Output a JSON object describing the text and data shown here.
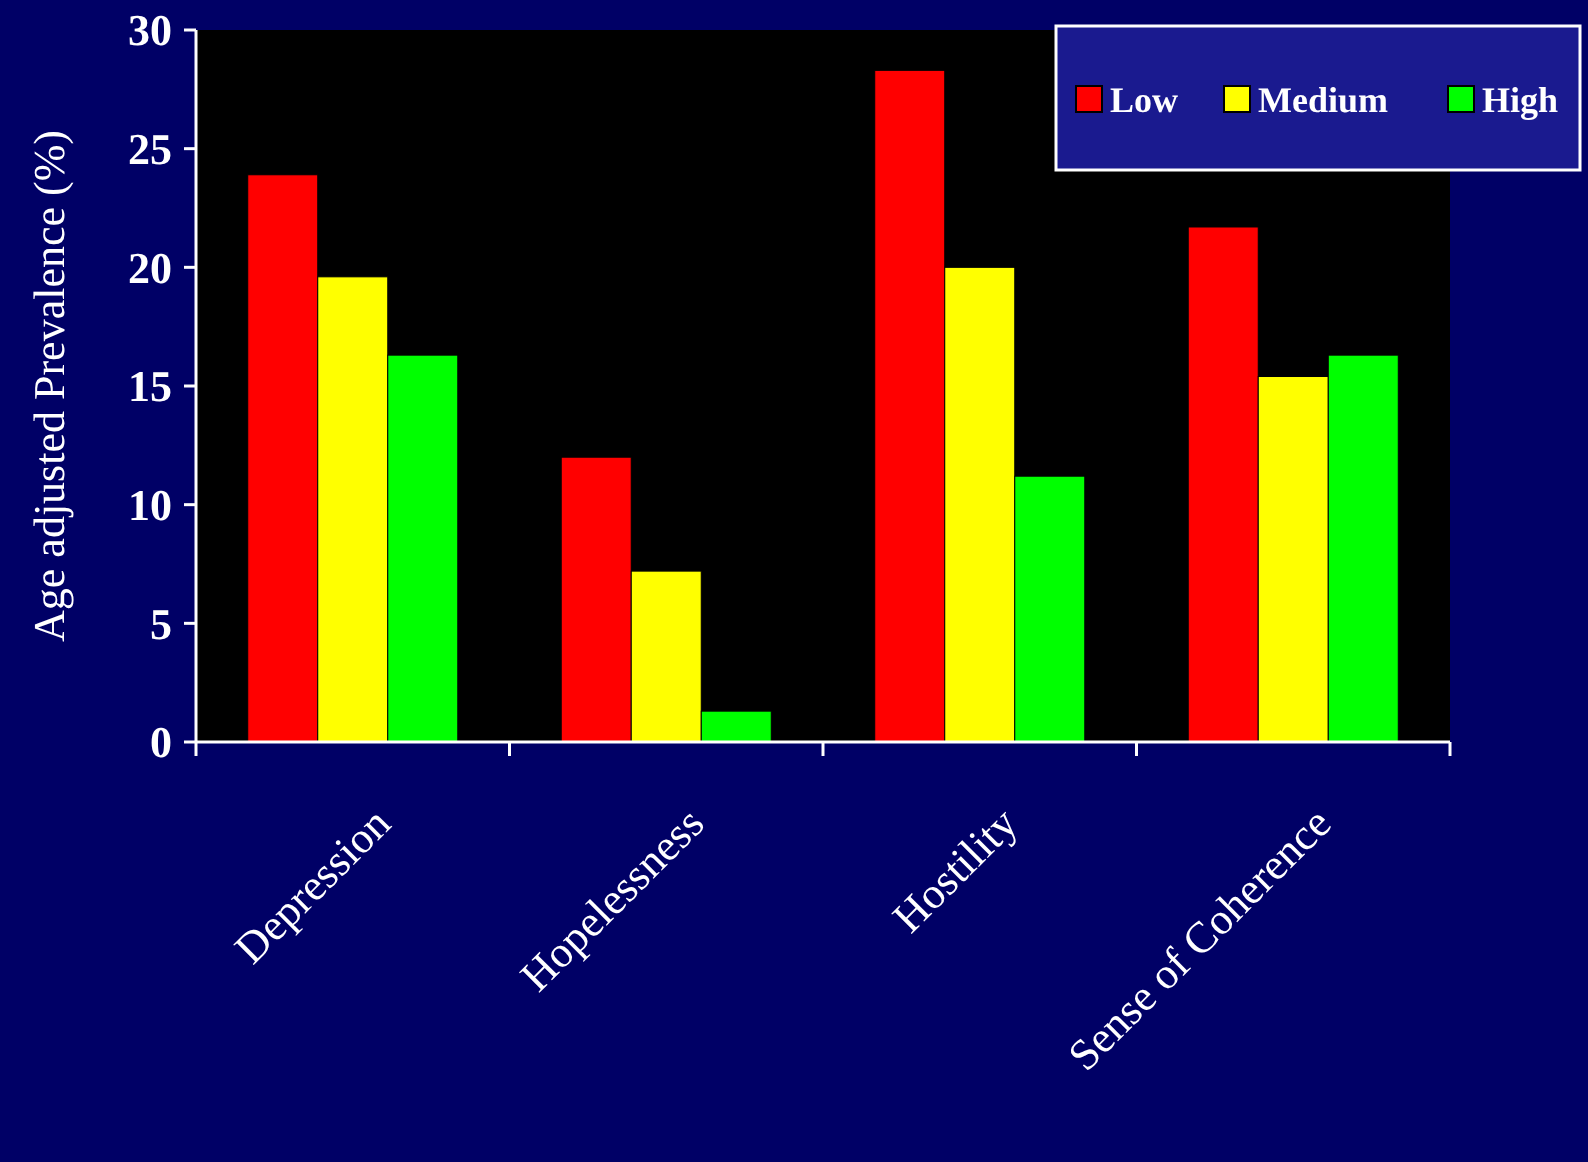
{
  "chart_data": {
    "type": "bar",
    "ylabel": "Age adjusted Prevalence (%)",
    "categories": [
      "Depression",
      "Hopelessness",
      "Hostility",
      "Sense of Coherence"
    ],
    "series": [
      {
        "name": "Low",
        "color": "#ff0000",
        "values": [
          23.9,
          12.0,
          28.3,
          21.7
        ]
      },
      {
        "name": "Medium",
        "color": "#ffff00",
        "values": [
          19.6,
          7.2,
          20.0,
          15.4
        ]
      },
      {
        "name": "High",
        "color": "#00ff00",
        "values": [
          16.3,
          1.3,
          11.2,
          16.3
        ]
      }
    ],
    "ylim": [
      0,
      30
    ],
    "yticks": [
      0,
      5,
      10,
      15,
      20,
      25,
      30
    ],
    "grid": false,
    "legend": "top right"
  }
}
